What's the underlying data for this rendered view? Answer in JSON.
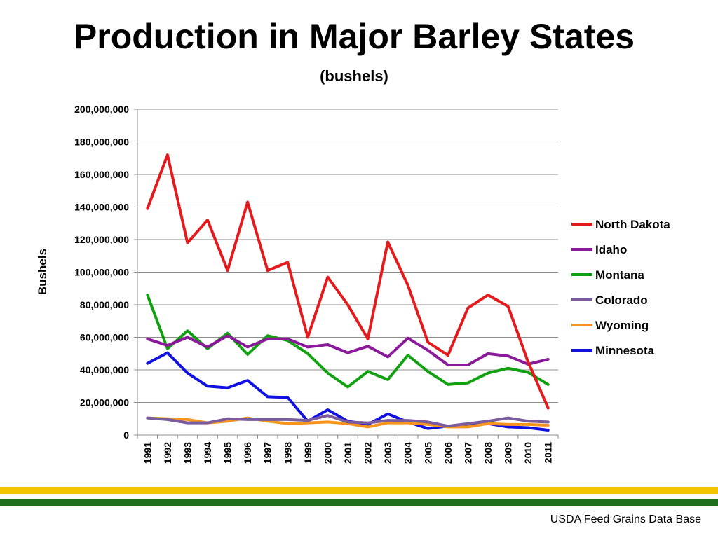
{
  "slide": {
    "title": "Production in Major Barley States",
    "subtitle": "(bushels)",
    "source": "USDA Feed Grains Data Base"
  },
  "colors": {
    "band_yellow": "#F5C400",
    "band_green": "#1D6F1D",
    "grid": "#8C8C8C",
    "axis": "#8C8C8C"
  },
  "chart_data": {
    "type": "line",
    "title": "",
    "xlabel": "",
    "ylabel": "Bushels",
    "ylim": [
      0,
      200000000
    ],
    "yticks": [
      0,
      20000000,
      40000000,
      60000000,
      80000000,
      100000000,
      120000000,
      140000000,
      160000000,
      180000000,
      200000000
    ],
    "ytick_labels": [
      "0",
      "20,000,000",
      "40,000,000",
      "60,000,000",
      "80,000,000",
      "100,000,000",
      "120,000,000",
      "140,000,000",
      "160,000,000",
      "180,000,000",
      "200,000,000"
    ],
    "grid": true,
    "legend": "right",
    "categories": [
      "1991",
      "1992",
      "1993",
      "1994",
      "1995",
      "1996",
      "1997",
      "1998",
      "1999",
      "2000",
      "2001",
      "2002",
      "2003",
      "2004",
      "2005",
      "2006",
      "2007",
      "2008",
      "2009",
      "2010",
      "2011"
    ],
    "series": [
      {
        "name": "North Dakota",
        "color": "#E41A1C",
        "values": [
          139000000,
          172000000,
          118000000,
          132000000,
          101000000,
          143000000,
          101000000,
          106000000,
          60000000,
          97000000,
          80000000,
          59000000,
          118500000,
          92000000,
          57000000,
          49000000,
          78000000,
          86000000,
          79000000,
          45000000,
          16500000
        ]
      },
      {
        "name": "Idaho",
        "color": "#8B1A9A",
        "values": [
          59000000,
          55000000,
          60000000,
          54000000,
          61000000,
          54000000,
          59000000,
          59000000,
          54000000,
          55500000,
          50500000,
          54500000,
          48000000,
          59500000,
          52000000,
          43000000,
          43000000,
          50000000,
          48500000,
          43500000,
          46500000
        ]
      },
      {
        "name": "Montana",
        "color": "#10A010",
        "values": [
          86000000,
          53000000,
          64000000,
          53000000,
          62500000,
          49500000,
          61000000,
          58000000,
          50000000,
          38000000,
          29500000,
          39000000,
          34000000,
          49000000,
          39000000,
          31000000,
          32000000,
          38000000,
          41000000,
          38500000,
          31000000
        ]
      },
      {
        "name": "Colorado",
        "color": "#7A5C9E",
        "values": [
          10500000,
          9500000,
          7500000,
          7500000,
          10000000,
          9500000,
          9500000,
          9500000,
          9000000,
          12000000,
          8000000,
          7500000,
          9000000,
          9000000,
          8000000,
          5500000,
          7000000,
          8500000,
          10500000,
          8500000,
          8000000
        ]
      },
      {
        "name": "Wyoming",
        "color": "#F7941D",
        "values": [
          10500000,
          10000000,
          9500000,
          7500000,
          8500000,
          10500000,
          8500000,
          7000000,
          7500000,
          8000000,
          7000000,
          5000000,
          7500000,
          7500000,
          6500000,
          5000000,
          5000000,
          7000000,
          6500000,
          6500000,
          6000000
        ]
      },
      {
        "name": "Minnesota",
        "color": "#1010E0",
        "values": [
          44000000,
          50500000,
          38000000,
          30000000,
          29000000,
          33500000,
          23500000,
          23000000,
          8500000,
          15500000,
          8500000,
          6500000,
          13000000,
          8000000,
          4000000,
          5500000,
          6000000,
          7000000,
          5000000,
          4500000,
          3000000
        ]
      }
    ]
  }
}
